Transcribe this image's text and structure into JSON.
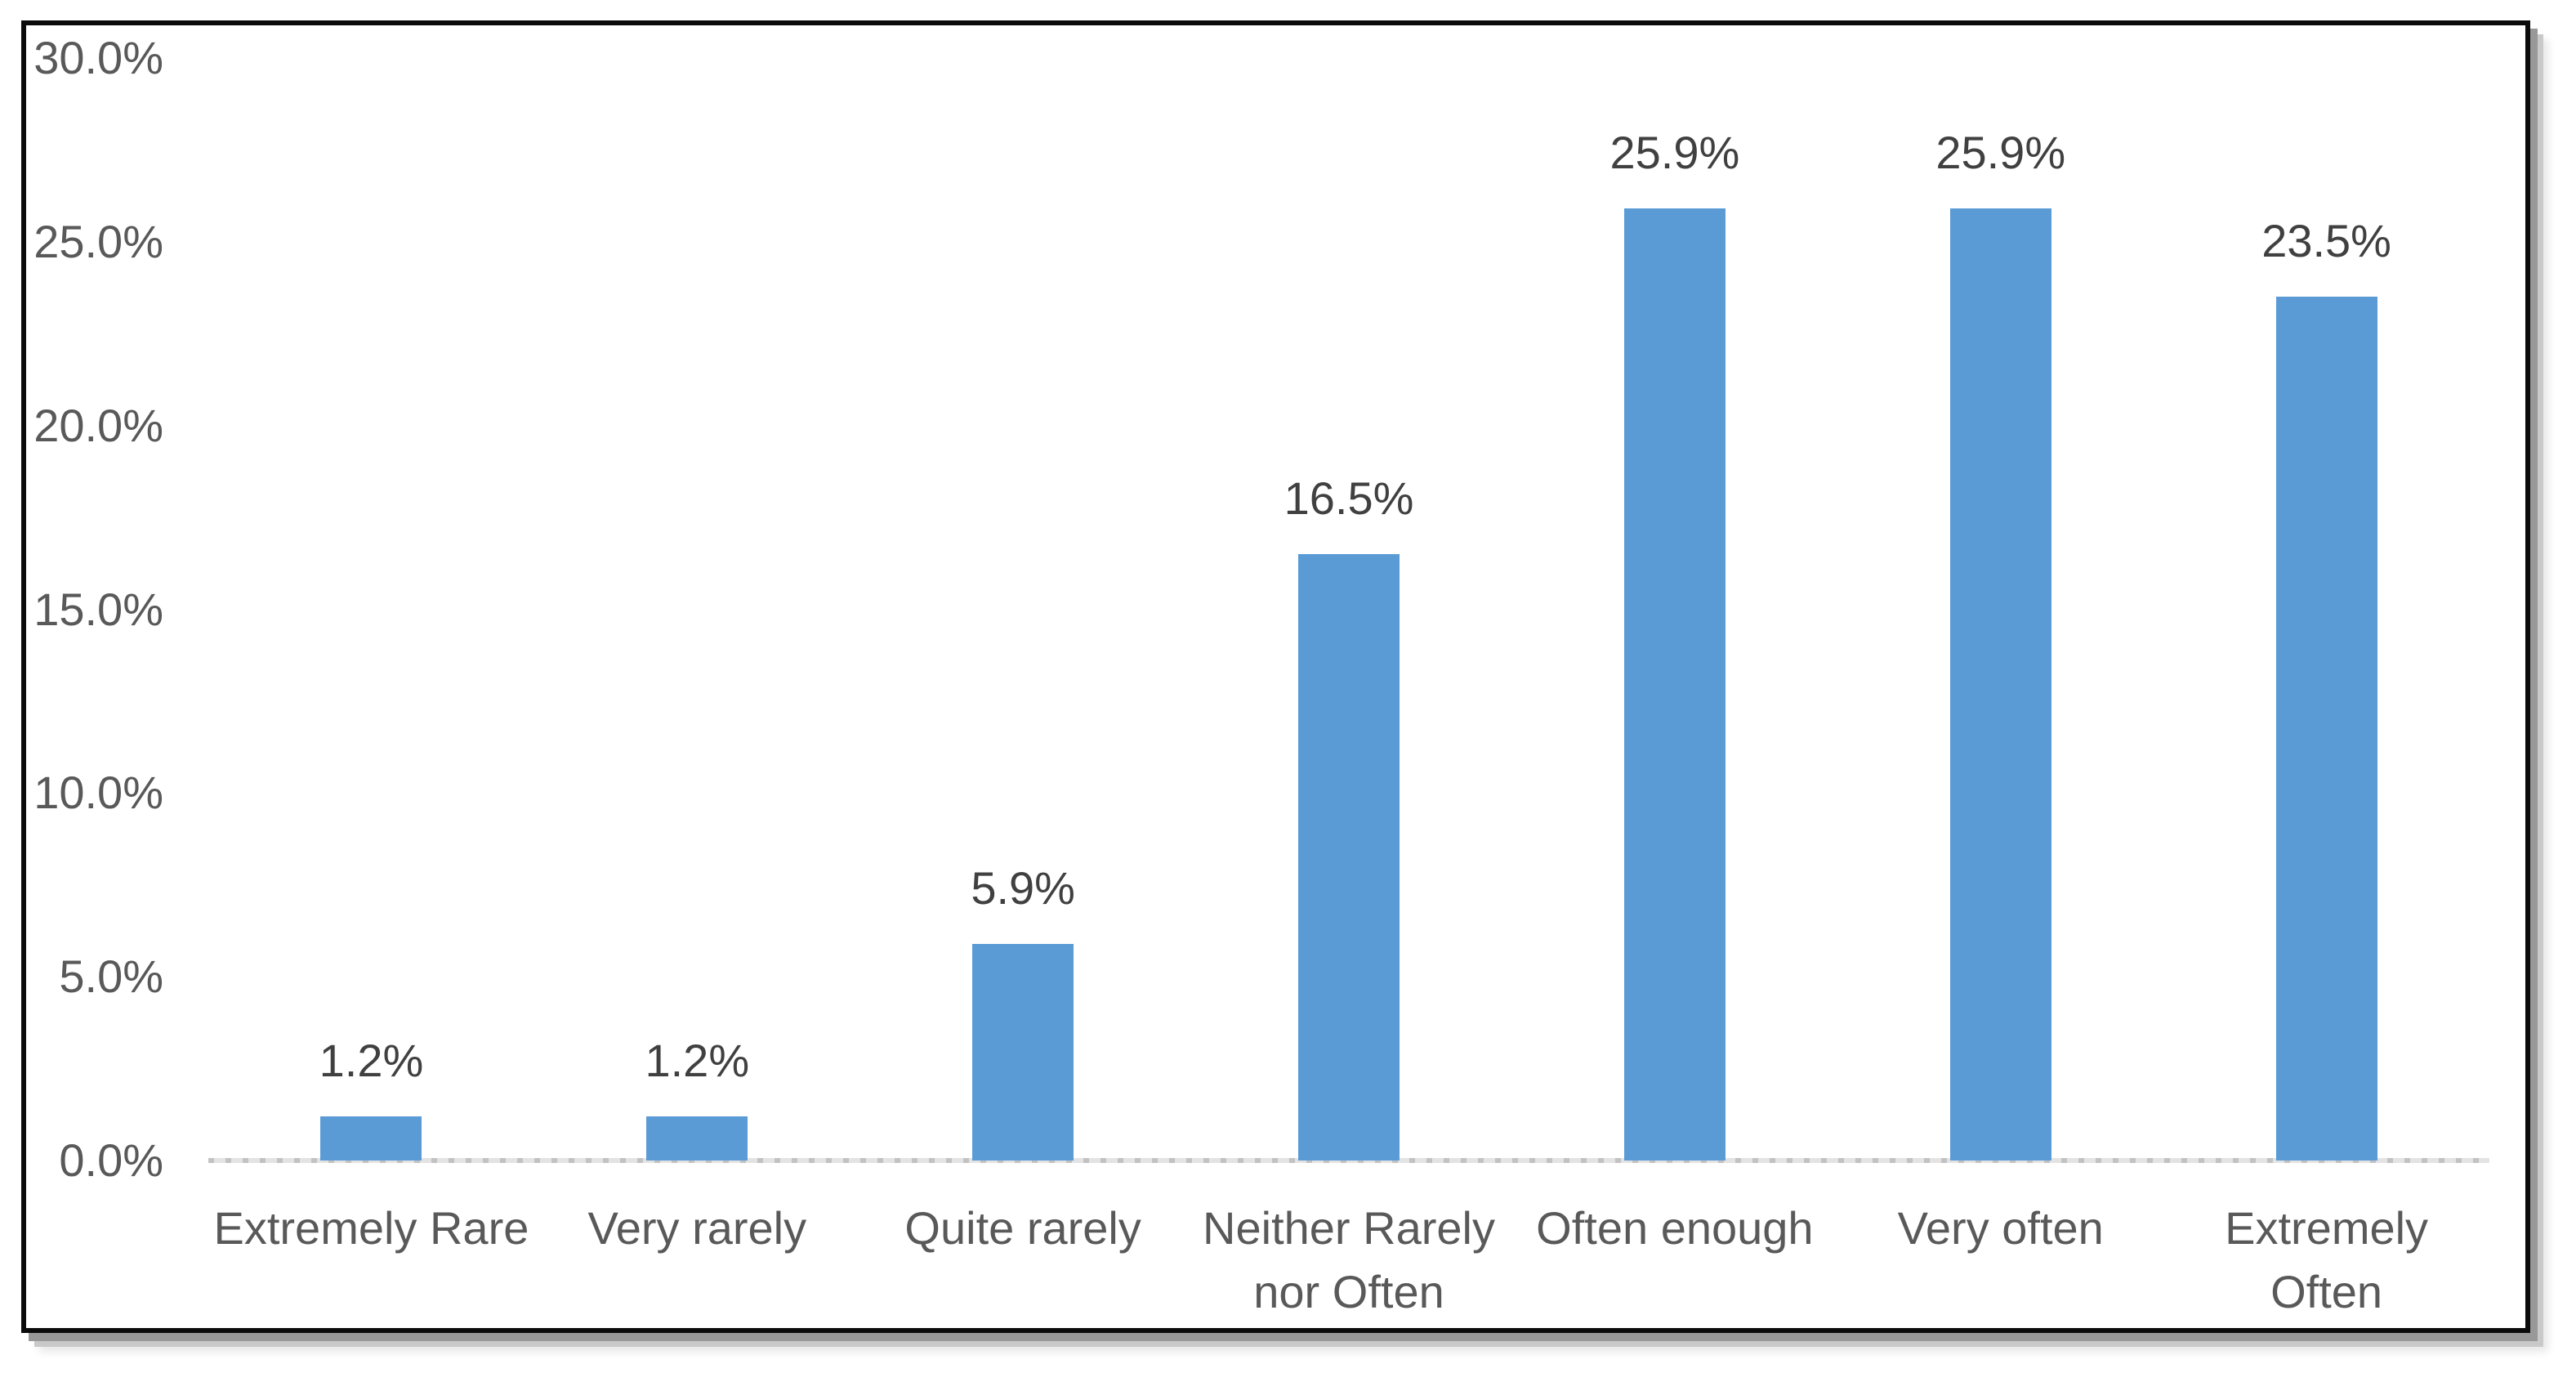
{
  "chart_data": {
    "type": "bar",
    "title": "",
    "xlabel": "",
    "ylabel": "",
    "categories": [
      "Extremely Rare",
      "Very rarely",
      "Quite rarely",
      "Neither Rarely nor Often",
      "Often enough",
      "Very often",
      "Extremely Often"
    ],
    "category_lines": [
      [
        "Extremely Rare"
      ],
      [
        "Very rarely"
      ],
      [
        "Quite rarely"
      ],
      [
        "Neither Rarely",
        "nor Often"
      ],
      [
        "Often enough"
      ],
      [
        "Very often"
      ],
      [
        "Extremely",
        "Often"
      ]
    ],
    "values": [
      1.2,
      1.2,
      5.9,
      16.5,
      25.9,
      25.9,
      23.5
    ],
    "value_labels": [
      "1.2%",
      "1.2%",
      "5.9%",
      "16.5%",
      "25.9%",
      "25.9%",
      "23.5%"
    ],
    "y_ticks": [
      "30.0%",
      "25.0%",
      "20.0%",
      "15.0%",
      "10.0%",
      "5.0%",
      "0.0%"
    ],
    "ylim": [
      0,
      30
    ],
    "grid": "off",
    "legend": "none",
    "bar_color": "#5B9BD5",
    "data_label_color": "#404040",
    "axis_text_color": "#595959",
    "axis_line_style": "dotted",
    "axis_line_color": "#c9c9c9",
    "frame_border_color": "#0b0b0b",
    "background_color": "#ffffff"
  }
}
